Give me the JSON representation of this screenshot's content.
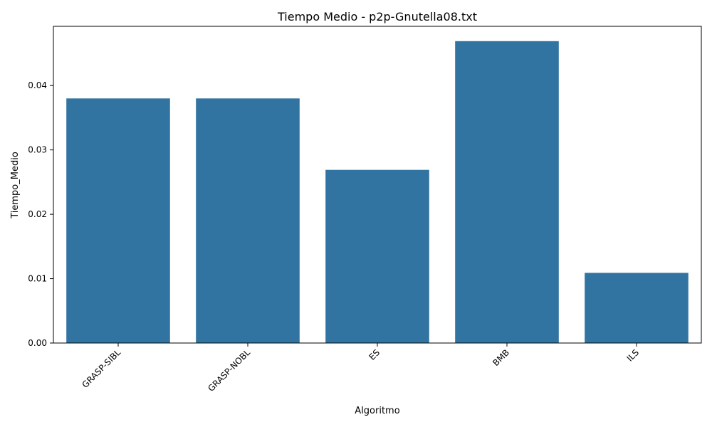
{
  "chart_data": {
    "type": "bar",
    "title": "Tiempo Medio - p2p-Gnutella08.txt",
    "xlabel": "Algoritmo",
    "ylabel": "Tiempo_Medio",
    "categories": [
      "GRASP-SIBL",
      "GRASP-NOBL",
      "ES",
      "BMB",
      "ILS"
    ],
    "values": [
      0.038,
      0.038,
      0.0269,
      0.0469,
      0.0109
    ],
    "ylim": [
      0,
      0.0492
    ],
    "yticks": [
      "0.00",
      "0.01",
      "0.02",
      "0.03",
      "0.04"
    ],
    "ytick_values": [
      0,
      0.01,
      0.02,
      0.03,
      0.04
    ],
    "grid": false,
    "bar_color": "#3274a1",
    "xtick_rotation": "45deg"
  }
}
